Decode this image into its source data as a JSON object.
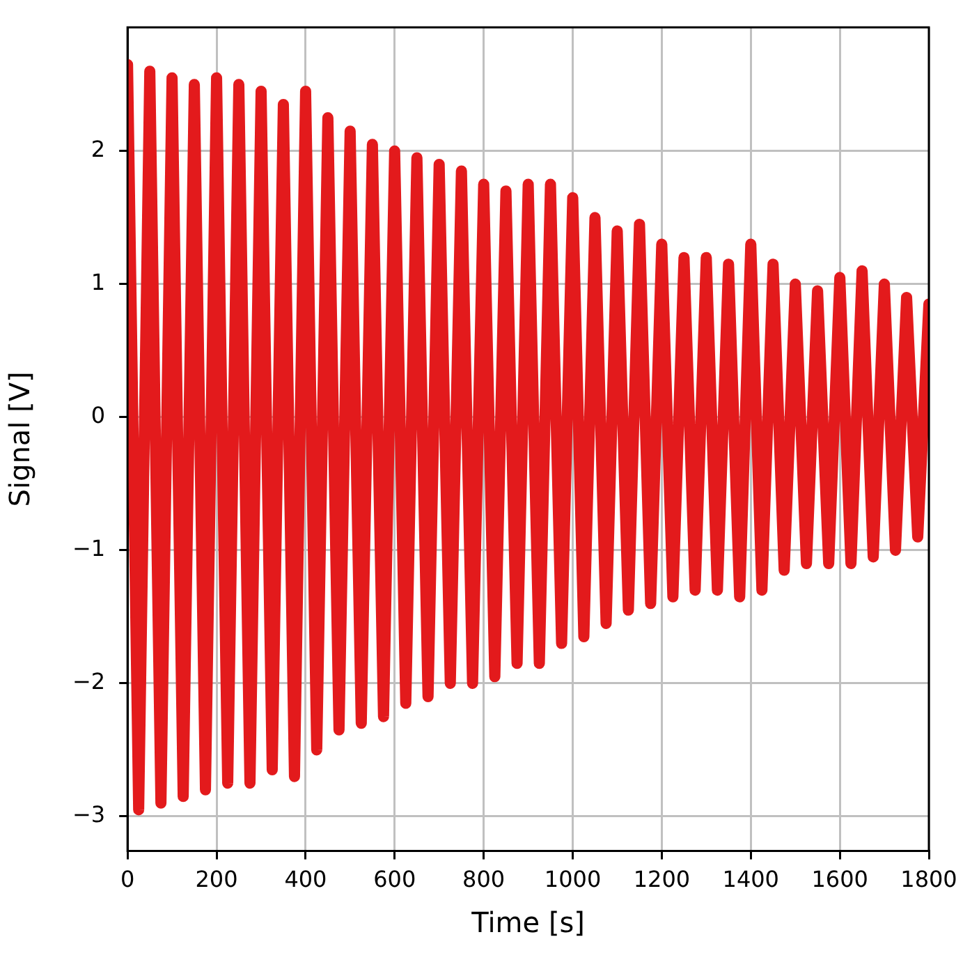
{
  "chart_data": {
    "type": "line",
    "xlabel": "Time [s]",
    "ylabel": "Signal [V]",
    "x": [
      0,
      25,
      50,
      75,
      100,
      125,
      150,
      175,
      200,
      225,
      250,
      275,
      300,
      325,
      350,
      375,
      400,
      425,
      450,
      475,
      500,
      525,
      550,
      575,
      600,
      625,
      650,
      675,
      700,
      725,
      750,
      775,
      800,
      825,
      850,
      875,
      900,
      925,
      950,
      975,
      1000,
      1025,
      1050,
      1075,
      1100,
      1125,
      1150,
      1175,
      1200,
      1225,
      1250,
      1275,
      1300,
      1325,
      1350,
      1375,
      1400,
      1425,
      1450,
      1475,
      1500,
      1525,
      1550,
      1575,
      1600,
      1625,
      1650,
      1675,
      1700,
      1725,
      1750,
      1775,
      1800
    ],
    "series": [
      {
        "color": "#e31a1c",
        "values": [
          2.65,
          -2.95,
          2.6,
          -2.9,
          2.55,
          -2.85,
          2.5,
          -2.8,
          2.55,
          -2.75,
          2.5,
          -2.75,
          2.45,
          -2.65,
          2.35,
          -2.7,
          2.45,
          -2.5,
          2.25,
          -2.35,
          2.15,
          -2.3,
          2.05,
          -2.25,
          2.0,
          -2.15,
          1.95,
          -2.1,
          1.9,
          -2.0,
          1.85,
          -2.0,
          1.75,
          -1.95,
          1.7,
          -1.85,
          1.75,
          -1.85,
          1.75,
          -1.7,
          1.65,
          -1.65,
          1.5,
          -1.55,
          1.4,
          -1.45,
          1.45,
          -1.4,
          1.3,
          -1.35,
          1.2,
          -1.3,
          1.2,
          -1.3,
          1.15,
          -1.35,
          1.3,
          -1.3,
          1.15,
          -1.15,
          1.0,
          -1.1,
          0.95,
          -1.1,
          1.05,
          -1.1,
          1.1,
          -1.05,
          1.0,
          -1.0,
          0.9,
          -0.9,
          0.85
        ]
      }
    ],
    "xlim": [
      0,
      1800
    ],
    "xticks": [
      0,
      200,
      400,
      600,
      800,
      1000,
      1200,
      1400,
      1600,
      1800
    ],
    "ylim": [
      -3.26,
      2.93
    ],
    "yticks": [
      -3,
      -2,
      -1,
      0,
      1,
      2
    ],
    "grid": true,
    "legend": false,
    "marker": "none",
    "line_style": "solid"
  }
}
